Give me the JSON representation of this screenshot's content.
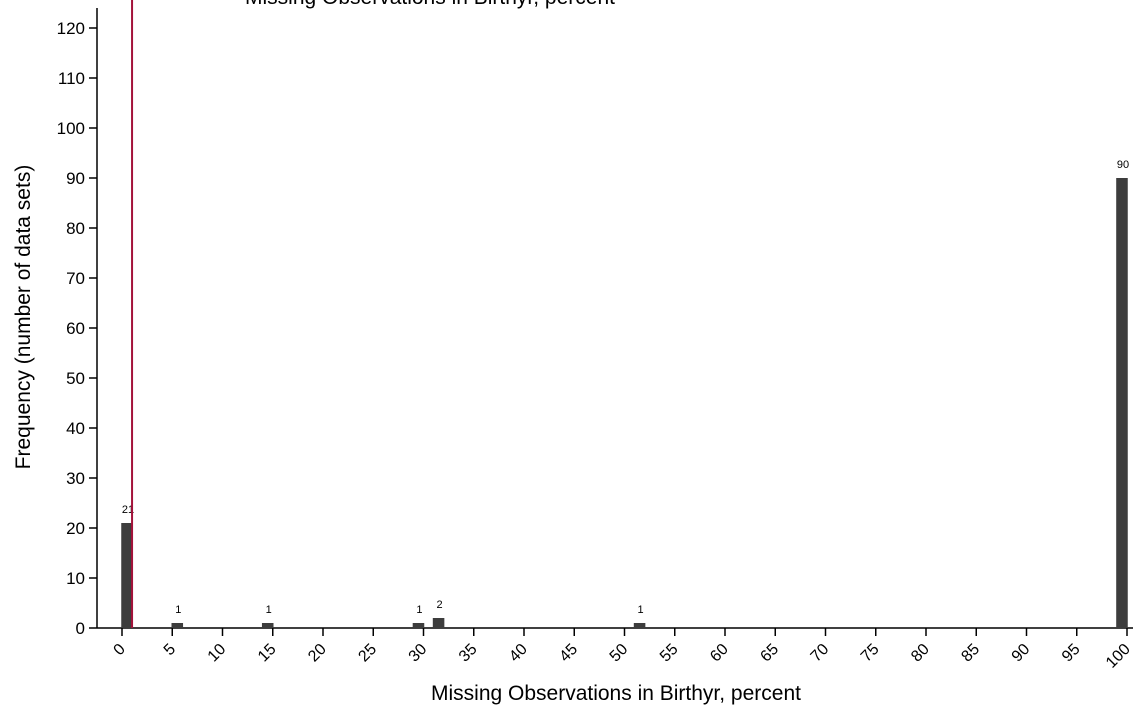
{
  "chart_data": {
    "type": "bar",
    "title": "Missing Observations in Birthyr, percent",
    "xlabel": "Missing Observations in Birthyr, percent",
    "ylabel": "Frequency (number of data sets)",
    "xlim": [
      0,
      100
    ],
    "ylim": [
      0,
      120
    ],
    "x_ticks": [
      0,
      5,
      10,
      15,
      20,
      25,
      30,
      35,
      40,
      45,
      50,
      55,
      60,
      65,
      70,
      75,
      80,
      85,
      90,
      95,
      100
    ],
    "y_ticks": [
      0,
      10,
      20,
      30,
      40,
      50,
      60,
      70,
      80,
      90,
      100,
      110,
      120
    ],
    "bars": [
      {
        "x": 0.5,
        "value": 21,
        "label": "21"
      },
      {
        "x": 5.5,
        "value": 1,
        "label": "1"
      },
      {
        "x": 14.5,
        "value": 1,
        "label": "1"
      },
      {
        "x": 29.5,
        "value": 1,
        "label": "1"
      },
      {
        "x": 31.5,
        "value": 2,
        "label": "2"
      },
      {
        "x": 51.5,
        "value": 1,
        "label": "1"
      },
      {
        "x": 99.5,
        "value": 90,
        "label": "90"
      }
    ],
    "reference_line": {
      "x": 1,
      "color": "#a3123a"
    },
    "bar_color": "#3d3d3d",
    "grid": false,
    "legend": "none"
  }
}
